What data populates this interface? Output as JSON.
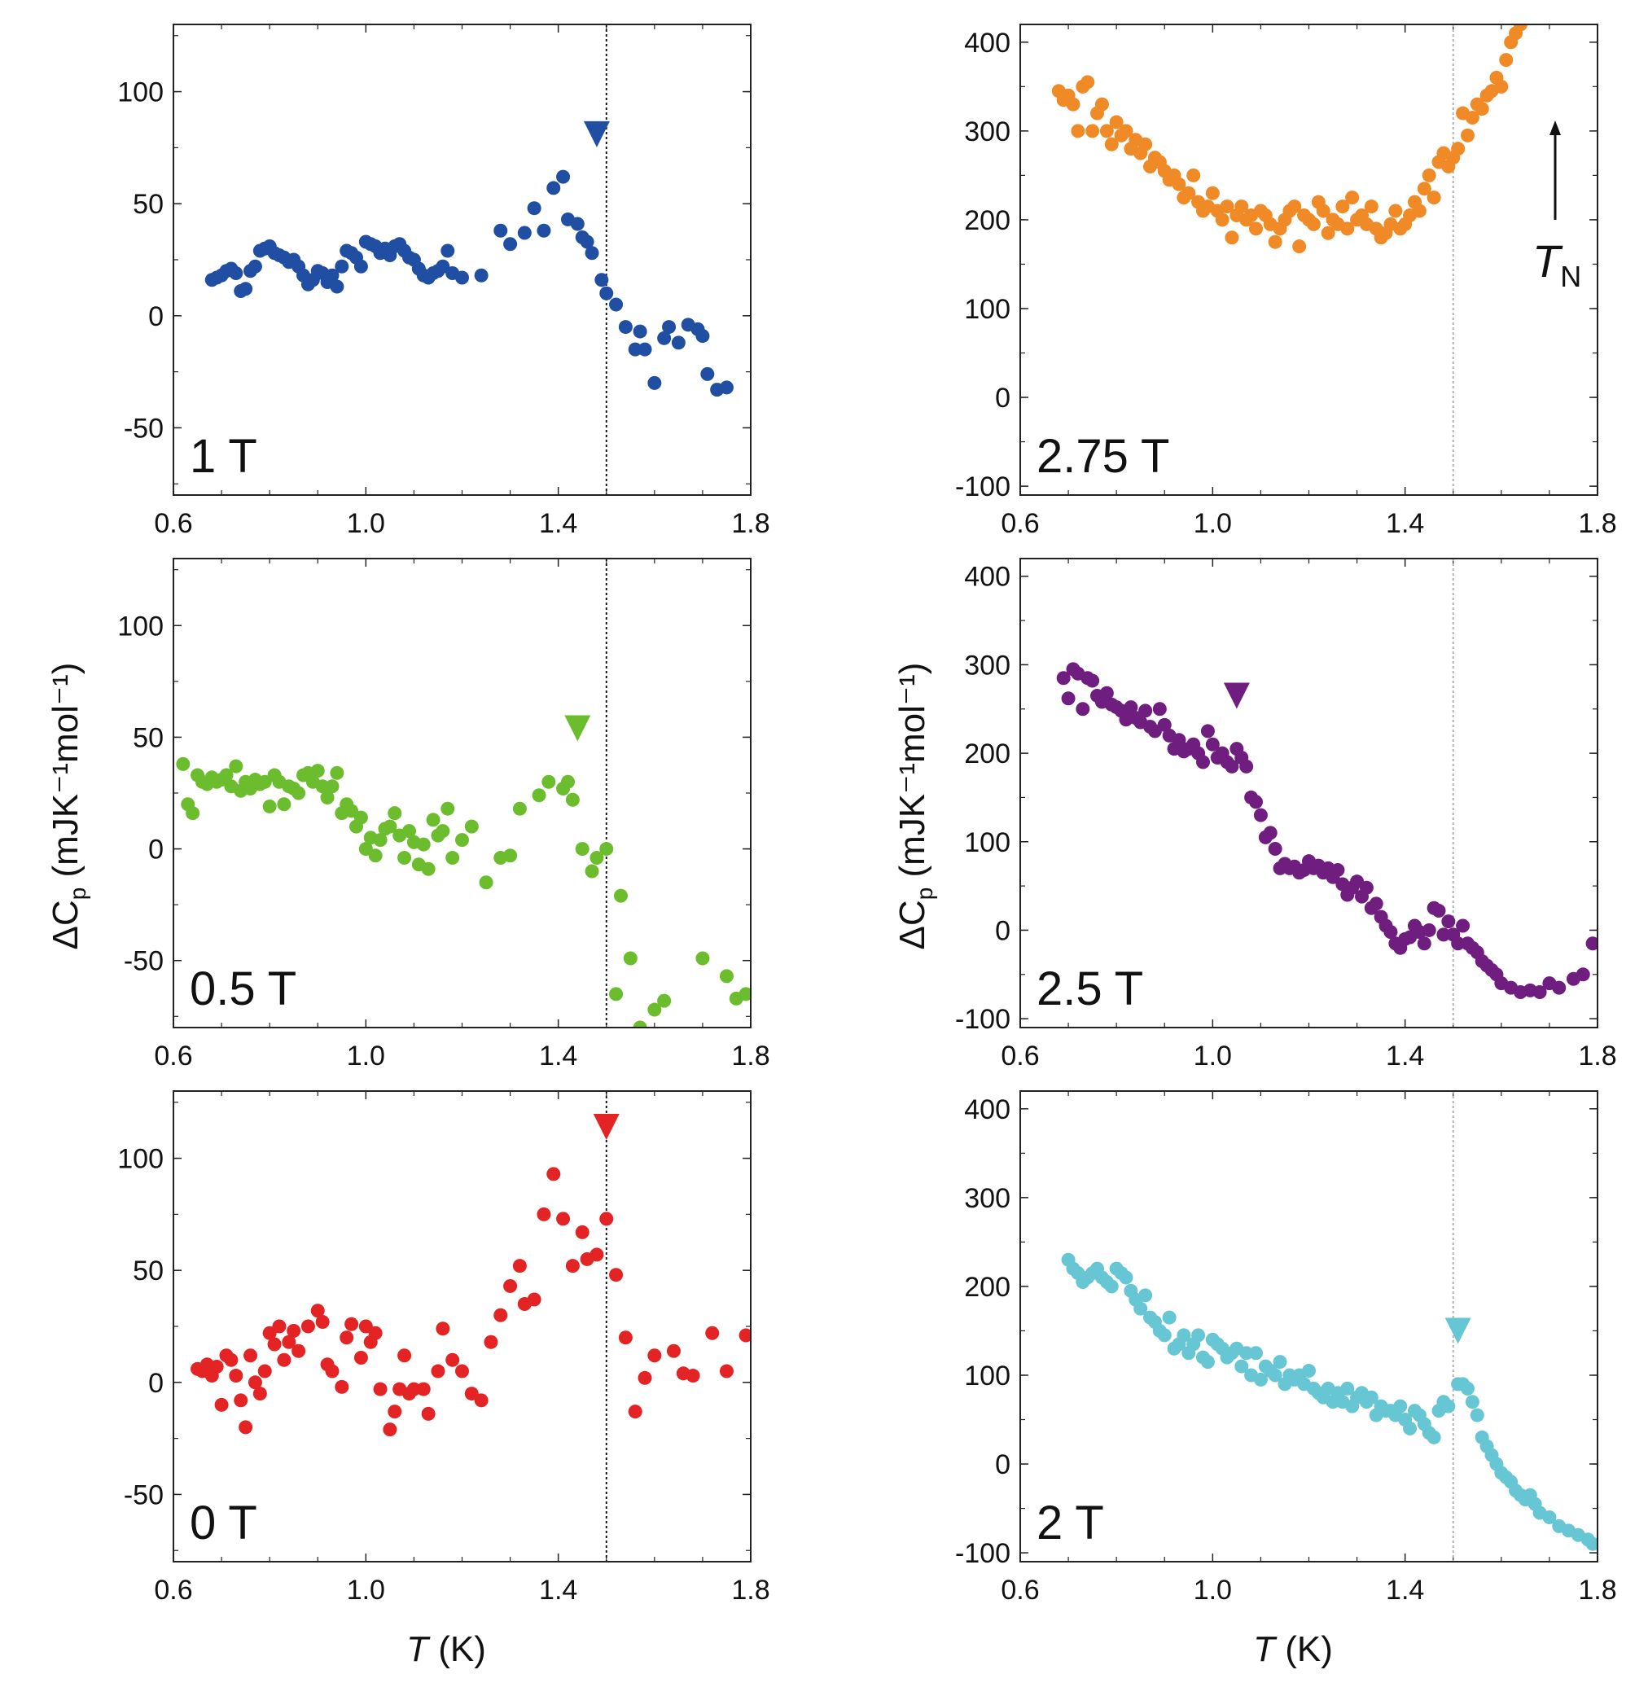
{
  "figure": {
    "x_axis_title": "T",
    "x_axis_unit": " (K)",
    "y_axis_title": "ΔC",
    "y_axis_title_sub": "p",
    "y_axis_title_unit": " (mJK⁻¹mol⁻¹)",
    "tn_annotation": "T",
    "tn_annotation_sub": "N",
    "vline_style": "dotted",
    "vline_color": "#000000",
    "vline_color_right": "#aaaaaa"
  },
  "chart_data": [
    {
      "type": "scatter",
      "label": "1 T",
      "color": "#1f4ea3",
      "xlim": [
        0.6,
        1.8
      ],
      "ylim": [
        -80,
        130
      ],
      "xticks": [
        0.6,
        1.0,
        1.4,
        1.8
      ],
      "xticklabels": [
        "0.6",
        "1.0",
        "1.4",
        "1.8"
      ],
      "yticks": [
        -50,
        0,
        50,
        100
      ],
      "yticklabels": [
        "-50",
        "0",
        "50",
        "100"
      ],
      "vline": 1.5,
      "marker": {
        "x": 1.48,
        "y": 81
      },
      "x": [
        0.68,
        0.69,
        0.7,
        0.71,
        0.72,
        0.73,
        0.74,
        0.75,
        0.76,
        0.77,
        0.78,
        0.79,
        0.8,
        0.81,
        0.82,
        0.83,
        0.84,
        0.85,
        0.86,
        0.87,
        0.88,
        0.89,
        0.9,
        0.91,
        0.92,
        0.93,
        0.94,
        0.95,
        0.96,
        0.97,
        0.98,
        0.99,
        1.0,
        1.01,
        1.02,
        1.03,
        1.04,
        1.05,
        1.06,
        1.07,
        1.08,
        1.09,
        1.1,
        1.11,
        1.12,
        1.13,
        1.14,
        1.15,
        1.16,
        1.17,
        1.18,
        1.2,
        1.24,
        1.28,
        1.3,
        1.33,
        1.35,
        1.37,
        1.39,
        1.41,
        1.42,
        1.44,
        1.45,
        1.46,
        1.47,
        1.49,
        1.5,
        1.52,
        1.54,
        1.56,
        1.57,
        1.58,
        1.6,
        1.62,
        1.63,
        1.65,
        1.67,
        1.69,
        1.7,
        1.71,
        1.73,
        1.75
      ],
      "y": [
        16,
        17,
        18,
        20,
        21,
        19,
        11,
        12,
        20,
        22,
        29,
        30,
        31,
        28,
        27,
        26,
        24,
        25,
        22,
        18,
        14,
        16,
        20,
        19,
        15,
        18,
        13,
        22,
        29,
        28,
        26,
        22,
        33,
        32,
        31,
        28,
        30,
        27,
        31,
        32,
        29,
        26,
        25,
        21,
        18,
        17,
        19,
        20,
        22,
        29,
        19,
        17,
        18,
        38,
        32,
        37,
        48,
        38,
        57,
        62,
        43,
        41,
        35,
        33,
        28,
        16,
        10,
        5,
        -5,
        -15,
        -7,
        -15,
        -30,
        -10,
        -5,
        -12,
        -4,
        -6,
        -9,
        -26,
        -33,
        -32
      ]
    },
    {
      "type": "scatter",
      "label": "2.75 T",
      "color": "#f08a26",
      "xlim": [
        0.6,
        1.8
      ],
      "ylim": [
        -110,
        420
      ],
      "xticks": [
        0.6,
        1.0,
        1.4,
        1.8
      ],
      "xticklabels": [
        "0.6",
        "1.0",
        "1.4",
        "1.8"
      ],
      "yticks": [
        -100,
        0,
        100,
        200,
        300,
        400
      ],
      "yticklabels": [
        "-100",
        "0",
        "100",
        "200",
        "300",
        "400"
      ],
      "vline": 1.5,
      "marker": null,
      "x": [
        0.68,
        0.69,
        0.7,
        0.71,
        0.72,
        0.73,
        0.74,
        0.75,
        0.76,
        0.77,
        0.78,
        0.79,
        0.8,
        0.81,
        0.82,
        0.83,
        0.84,
        0.85,
        0.86,
        0.87,
        0.88,
        0.89,
        0.9,
        0.91,
        0.92,
        0.93,
        0.94,
        0.95,
        0.96,
        0.97,
        0.98,
        0.99,
        1.0,
        1.01,
        1.02,
        1.03,
        1.04,
        1.05,
        1.06,
        1.07,
        1.08,
        1.09,
        1.1,
        1.11,
        1.12,
        1.13,
        1.14,
        1.15,
        1.16,
        1.17,
        1.18,
        1.19,
        1.2,
        1.21,
        1.22,
        1.23,
        1.24,
        1.25,
        1.26,
        1.27,
        1.28,
        1.29,
        1.3,
        1.31,
        1.32,
        1.33,
        1.34,
        1.35,
        1.36,
        1.37,
        1.38,
        1.39,
        1.4,
        1.41,
        1.42,
        1.43,
        1.44,
        1.45,
        1.46,
        1.47,
        1.48,
        1.49,
        1.5,
        1.51,
        1.52,
        1.53,
        1.54,
        1.55,
        1.56,
        1.57,
        1.58,
        1.59,
        1.6,
        1.61,
        1.62,
        1.63,
        1.64
      ],
      "y": [
        345,
        335,
        340,
        330,
        300,
        350,
        355,
        300,
        320,
        330,
        300,
        285,
        310,
        295,
        300,
        280,
        290,
        275,
        285,
        260,
        270,
        265,
        255,
        245,
        250,
        240,
        225,
        230,
        250,
        220,
        210,
        215,
        230,
        210,
        200,
        215,
        180,
        205,
        215,
        200,
        205,
        190,
        210,
        205,
        195,
        175,
        190,
        200,
        210,
        215,
        170,
        205,
        200,
        195,
        220,
        210,
        185,
        200,
        195,
        215,
        190,
        225,
        200,
        205,
        195,
        215,
        190,
        180,
        185,
        195,
        210,
        190,
        195,
        205,
        220,
        210,
        235,
        250,
        225,
        265,
        275,
        260,
        270,
        280,
        320,
        295,
        315,
        330,
        325,
        340,
        345,
        360,
        350,
        380,
        400,
        410,
        420
      ]
    },
    {
      "type": "scatter",
      "label": "0.5 T",
      "color": "#6bbd2e",
      "xlim": [
        0.6,
        1.8
      ],
      "ylim": [
        -80,
        130
      ],
      "xticks": [
        0.6,
        1.0,
        1.4,
        1.8
      ],
      "xticklabels": [
        "0.6",
        "1.0",
        "1.4",
        "1.8"
      ],
      "yticks": [
        -50,
        0,
        50,
        100
      ],
      "yticklabels": [
        "-50",
        "0",
        "50",
        "100"
      ],
      "vline": 1.5,
      "marker": {
        "x": 1.44,
        "y": 54
      },
      "x": [
        0.62,
        0.63,
        0.64,
        0.65,
        0.66,
        0.67,
        0.68,
        0.69,
        0.7,
        0.71,
        0.72,
        0.73,
        0.74,
        0.75,
        0.76,
        0.77,
        0.78,
        0.79,
        0.8,
        0.81,
        0.82,
        0.83,
        0.84,
        0.85,
        0.86,
        0.87,
        0.88,
        0.89,
        0.9,
        0.91,
        0.92,
        0.93,
        0.94,
        0.95,
        0.96,
        0.97,
        0.98,
        0.99,
        1.0,
        1.01,
        1.02,
        1.03,
        1.04,
        1.05,
        1.06,
        1.07,
        1.08,
        1.09,
        1.1,
        1.11,
        1.12,
        1.13,
        1.14,
        1.15,
        1.16,
        1.17,
        1.18,
        1.2,
        1.22,
        1.25,
        1.28,
        1.3,
        1.32,
        1.36,
        1.38,
        1.41,
        1.42,
        1.43,
        1.45,
        1.47,
        1.48,
        1.5,
        1.52,
        1.53,
        1.55,
        1.57,
        1.6,
        1.62,
        1.7,
        1.75,
        1.77,
        1.79
      ],
      "y": [
        38,
        20,
        16,
        33,
        30,
        29,
        32,
        30,
        31,
        33,
        28,
        37,
        26,
        30,
        27,
        31,
        29,
        30,
        19,
        33,
        30,
        20,
        28,
        27,
        25,
        33,
        34,
        30,
        35,
        28,
        23,
        28,
        34,
        16,
        20,
        17,
        10,
        14,
        0,
        5,
        -3,
        4,
        9,
        10,
        16,
        6,
        -4,
        8,
        3,
        -7,
        2,
        -9,
        13,
        6,
        8,
        18,
        -4,
        4,
        10,
        -15,
        -4,
        -3,
        18,
        24,
        30,
        27,
        30,
        22,
        0,
        -10,
        -4,
        0,
        -65,
        -21,
        -49,
        -80,
        -72,
        -68,
        -49,
        -57,
        -67,
        -65
      ]
    },
    {
      "type": "scatter",
      "label": "2.5 T",
      "color": "#6f1e80",
      "xlim": [
        0.6,
        1.8
      ],
      "ylim": [
        -110,
        420
      ],
      "xticks": [
        0.6,
        1.0,
        1.4,
        1.8
      ],
      "xticklabels": [
        "0.6",
        "1.0",
        "1.4",
        "1.8"
      ],
      "yticks": [
        -100,
        0,
        100,
        200,
        300,
        400
      ],
      "yticklabels": [
        "-100",
        "0",
        "100",
        "200",
        "300",
        "400"
      ],
      "vline": 1.5,
      "marker": {
        "x": 1.05,
        "y": 265
      },
      "x": [
        0.69,
        0.7,
        0.71,
        0.72,
        0.73,
        0.74,
        0.75,
        0.76,
        0.77,
        0.78,
        0.79,
        0.8,
        0.81,
        0.82,
        0.83,
        0.84,
        0.85,
        0.86,
        0.87,
        0.88,
        0.89,
        0.9,
        0.91,
        0.92,
        0.93,
        0.94,
        0.95,
        0.96,
        0.97,
        0.98,
        0.99,
        1.0,
        1.01,
        1.02,
        1.03,
        1.04,
        1.05,
        1.06,
        1.07,
        1.08,
        1.09,
        1.1,
        1.11,
        1.12,
        1.13,
        1.14,
        1.15,
        1.16,
        1.17,
        1.18,
        1.19,
        1.2,
        1.21,
        1.22,
        1.23,
        1.24,
        1.25,
        1.26,
        1.27,
        1.28,
        1.29,
        1.3,
        1.31,
        1.32,
        1.33,
        1.34,
        1.35,
        1.36,
        1.37,
        1.38,
        1.39,
        1.4,
        1.41,
        1.42,
        1.43,
        1.44,
        1.45,
        1.46,
        1.47,
        1.48,
        1.49,
        1.5,
        1.51,
        1.52,
        1.53,
        1.54,
        1.55,
        1.56,
        1.57,
        1.58,
        1.59,
        1.6,
        1.62,
        1.64,
        1.66,
        1.68,
        1.7,
        1.72,
        1.75,
        1.77,
        1.79
      ],
      "y": [
        285,
        262,
        295,
        290,
        250,
        285,
        282,
        265,
        258,
        268,
        255,
        252,
        248,
        238,
        252,
        240,
        235,
        248,
        230,
        225,
        250,
        232,
        220,
        205,
        215,
        202,
        205,
        210,
        200,
        190,
        225,
        210,
        195,
        200,
        190,
        185,
        205,
        195,
        185,
        150,
        145,
        130,
        105,
        110,
        92,
        70,
        75,
        70,
        72,
        65,
        68,
        78,
        70,
        73,
        65,
        70,
        60,
        68,
        52,
        40,
        48,
        55,
        38,
        48,
        25,
        30,
        15,
        5,
        -2,
        -15,
        -20,
        -10,
        -8,
        5,
        -2,
        -15,
        0,
        25,
        22,
        -5,
        10,
        -5,
        -15,
        5,
        -15,
        -20,
        -25,
        -35,
        -40,
        -45,
        -50,
        -60,
        -65,
        -70,
        -68,
        -70,
        -60,
        -65,
        -55,
        -50,
        -15
      ]
    },
    {
      "type": "scatter",
      "label": "0 T",
      "color": "#e42424",
      "xlim": [
        0.6,
        1.8
      ],
      "ylim": [
        -80,
        130
      ],
      "xticks": [
        0.6,
        1.0,
        1.4,
        1.8
      ],
      "xticklabels": [
        "0.6",
        "1.0",
        "1.4",
        "1.8"
      ],
      "yticks": [
        -50,
        0,
        50,
        100
      ],
      "yticklabels": [
        "-50",
        "0",
        "50",
        "100"
      ],
      "vline": 1.5,
      "marker": {
        "x": 1.5,
        "y": 114
      },
      "x": [
        0.65,
        0.66,
        0.67,
        0.68,
        0.69,
        0.7,
        0.71,
        0.72,
        0.73,
        0.74,
        0.75,
        0.76,
        0.77,
        0.78,
        0.79,
        0.8,
        0.81,
        0.82,
        0.83,
        0.84,
        0.85,
        0.86,
        0.88,
        0.9,
        0.91,
        0.92,
        0.93,
        0.95,
        0.96,
        0.97,
        0.99,
        1.0,
        1.01,
        1.02,
        1.03,
        1.05,
        1.06,
        1.07,
        1.08,
        1.09,
        1.1,
        1.12,
        1.13,
        1.15,
        1.16,
        1.18,
        1.2,
        1.22,
        1.24,
        1.26,
        1.28,
        1.3,
        1.32,
        1.33,
        1.35,
        1.37,
        1.39,
        1.41,
        1.43,
        1.45,
        1.46,
        1.48,
        1.5,
        1.52,
        1.54,
        1.56,
        1.58,
        1.6,
        1.64,
        1.66,
        1.68,
        1.72,
        1.75,
        1.79
      ],
      "y": [
        6,
        5,
        8,
        3,
        7,
        -10,
        12,
        10,
        3,
        -8,
        -20,
        12,
        0,
        -5,
        5,
        22,
        17,
        25,
        10,
        18,
        23,
        14,
        25,
        32,
        27,
        8,
        5,
        -2,
        20,
        26,
        11,
        25,
        18,
        22,
        -3,
        -21,
        -13,
        -3,
        12,
        -5,
        -3,
        -3,
        -14,
        5,
        24,
        10,
        5,
        -5,
        -8,
        18,
        30,
        43,
        52,
        35,
        37,
        75,
        93,
        73,
        52,
        67,
        55,
        57,
        73,
        48,
        20,
        -13,
        2,
        12,
        14,
        4,
        3,
        22,
        5,
        21
      ]
    },
    {
      "type": "scatter",
      "label": "2 T",
      "color": "#66c6d3",
      "xlim": [
        0.6,
        1.8
      ],
      "ylim": [
        -110,
        420
      ],
      "xticks": [
        0.6,
        1.0,
        1.4,
        1.8
      ],
      "xticklabels": [
        "0.6",
        "1.0",
        "1.4",
        "1.8"
      ],
      "yticks": [
        -100,
        0,
        100,
        200,
        300,
        400
      ],
      "yticklabels": [
        "-100",
        "0",
        "100",
        "200",
        "300",
        "400"
      ],
      "vline": 1.5,
      "marker": {
        "x": 1.51,
        "y": 150
      },
      "x": [
        0.7,
        0.71,
        0.72,
        0.73,
        0.74,
        0.75,
        0.76,
        0.77,
        0.78,
        0.79,
        0.8,
        0.81,
        0.82,
        0.83,
        0.84,
        0.85,
        0.86,
        0.87,
        0.88,
        0.89,
        0.9,
        0.91,
        0.92,
        0.93,
        0.94,
        0.95,
        0.96,
        0.97,
        0.98,
        0.99,
        1.0,
        1.01,
        1.02,
        1.03,
        1.04,
        1.05,
        1.06,
        1.07,
        1.08,
        1.09,
        1.1,
        1.11,
        1.12,
        1.13,
        1.14,
        1.15,
        1.16,
        1.17,
        1.18,
        1.19,
        1.2,
        1.21,
        1.22,
        1.23,
        1.24,
        1.25,
        1.26,
        1.27,
        1.28,
        1.29,
        1.3,
        1.31,
        1.32,
        1.33,
        1.34,
        1.35,
        1.36,
        1.37,
        1.38,
        1.39,
        1.4,
        1.41,
        1.42,
        1.43,
        1.44,
        1.45,
        1.46,
        1.47,
        1.48,
        1.49,
        1.51,
        1.52,
        1.53,
        1.54,
        1.55,
        1.56,
        1.57,
        1.58,
        1.59,
        1.6,
        1.61,
        1.62,
        1.63,
        1.64,
        1.65,
        1.66,
        1.67,
        1.68,
        1.7,
        1.72,
        1.74,
        1.76,
        1.78,
        1.79
      ],
      "y": [
        230,
        220,
        215,
        205,
        210,
        215,
        220,
        210,
        205,
        200,
        220,
        215,
        210,
        195,
        185,
        175,
        190,
        165,
        160,
        150,
        145,
        165,
        130,
        135,
        145,
        125,
        135,
        145,
        120,
        115,
        140,
        135,
        130,
        120,
        125,
        130,
        110,
        125,
        100,
        125,
        95,
        110,
        105,
        100,
        115,
        90,
        100,
        95,
        100,
        90,
        105,
        85,
        80,
        75,
        85,
        70,
        80,
        70,
        85,
        65,
        75,
        80,
        70,
        75,
        55,
        65,
        60,
        60,
        55,
        65,
        50,
        40,
        60,
        55,
        45,
        35,
        30,
        60,
        70,
        65,
        90,
        90,
        85,
        70,
        55,
        30,
        20,
        10,
        0,
        -10,
        -15,
        -20,
        -30,
        -35,
        -40,
        -35,
        -45,
        -55,
        -60,
        -70,
        -75,
        -80,
        -85,
        -90
      ]
    }
  ]
}
